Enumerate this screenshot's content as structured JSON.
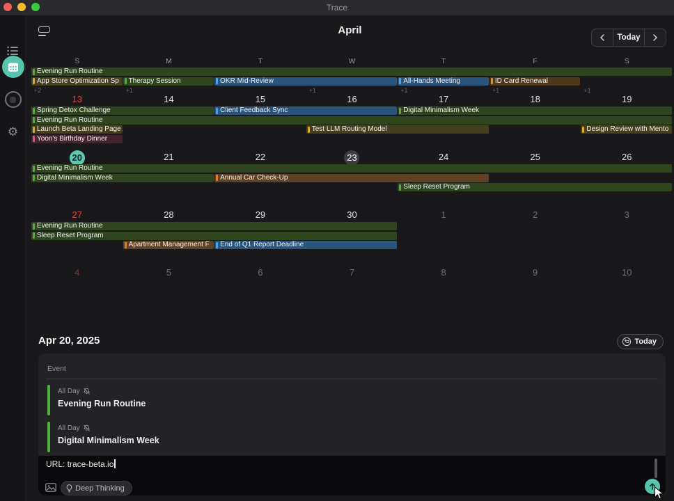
{
  "titlebar": {
    "title": "Trace"
  },
  "sidebar": {
    "icons": [
      "list-icon",
      "calendar-app-icon",
      "chat-circle-icon",
      "gear-icon"
    ],
    "accent": "#57c4ae"
  },
  "header": {
    "month": "April",
    "today_label": "Today"
  },
  "palette": {
    "green": {
      "marker": "#4fae3e",
      "bg": "#2e451e"
    },
    "yellow": {
      "marker": "#d8a72e",
      "bg": "#453f1d"
    },
    "blue": {
      "marker": "#56a1e6",
      "bg": "#29547c"
    },
    "brown": {
      "marker": "#dd8a2e",
      "bg": "#4e371b"
    },
    "orange": {
      "marker": "#e07e2e",
      "bg": "#5e4223"
    },
    "pink": {
      "marker": "#e05672",
      "bg": "#45222e"
    }
  },
  "calendar": {
    "weekday_headers": [
      "S",
      "M",
      "T",
      "W",
      "T",
      "F",
      "S"
    ],
    "weeks": [
      {
        "days": [],
        "events": [
          {
            "r": 1,
            "c": 1,
            "s": 7,
            "color": "green",
            "label": "Evening Run Routine"
          },
          {
            "r": 2,
            "c": 1,
            "s": 1,
            "color": "yellow",
            "label": "App Store Optimization Sp"
          },
          {
            "r": 2,
            "c": 2,
            "s": 1,
            "color": "green",
            "label": "Therapy Session"
          },
          {
            "r": 2,
            "c": 3,
            "s": 2,
            "color": "blue",
            "label": "OKR Mid-Review"
          },
          {
            "r": 2,
            "c": 5,
            "s": 1,
            "color": "blue",
            "label": "All-Hands Meeting"
          },
          {
            "r": 2,
            "c": 6,
            "s": 1,
            "color": "brown",
            "label": "ID Card Renewal"
          }
        ],
        "overflow": [
          "+2",
          "+1",
          "",
          "+1",
          "+1",
          "+1",
          "+1"
        ]
      },
      {
        "days": [
          {
            "n": "13",
            "t": "sunday"
          },
          {
            "n": "14"
          },
          {
            "n": "15"
          },
          {
            "n": "16"
          },
          {
            "n": "17"
          },
          {
            "n": "18"
          },
          {
            "n": "19"
          }
        ],
        "events": [
          {
            "r": 1,
            "c": 1,
            "s": 2,
            "color": "green",
            "label": "Spring Detox Challenge"
          },
          {
            "r": 1,
            "c": 3,
            "s": 2,
            "color": "blue",
            "label": "Client Feedback Sync"
          },
          {
            "r": 1,
            "c": 5,
            "s": 3,
            "color": "green",
            "label": "Digital Minimalism Week"
          },
          {
            "r": 2,
            "c": 1,
            "s": 7,
            "color": "green",
            "label": "Evening Run Routine"
          },
          {
            "r": 3,
            "c": 1,
            "s": 1,
            "color": "yellow",
            "label": "Launch Beta Landing Page"
          },
          {
            "r": 3,
            "c": 4,
            "s": 2,
            "color": "yellow",
            "label": "Test LLM Routing Model"
          },
          {
            "r": 3,
            "c": 7,
            "s": 1,
            "color": "yellow",
            "label": "Design Review with Mento"
          },
          {
            "r": 4,
            "c": 1,
            "s": 1,
            "color": "pink",
            "label": "Yoon's Birthday Dinner"
          }
        ]
      },
      {
        "days": [
          {
            "n": "20",
            "t": "sel"
          },
          {
            "n": "21"
          },
          {
            "n": "22"
          },
          {
            "n": "23",
            "t": "today"
          },
          {
            "n": "24"
          },
          {
            "n": "25"
          },
          {
            "n": "26"
          }
        ],
        "events": [
          {
            "r": 1,
            "c": 1,
            "s": 7,
            "color": "green",
            "label": "Evening Run Routine"
          },
          {
            "r": 2,
            "c": 1,
            "s": 2,
            "color": "green",
            "label": "Digital Minimalism Week"
          },
          {
            "r": 2,
            "c": 3,
            "s": 3,
            "color": "orange",
            "label": "Annual Car Check-Up"
          },
          {
            "r": 3,
            "c": 5,
            "s": 3,
            "color": "green",
            "label": "Sleep Reset Program"
          }
        ]
      },
      {
        "days": [
          {
            "n": "27",
            "t": "sunday"
          },
          {
            "n": "28"
          },
          {
            "n": "29"
          },
          {
            "n": "30"
          },
          {
            "n": "1",
            "t": "dim"
          },
          {
            "n": "2",
            "t": "dim"
          },
          {
            "n": "3",
            "t": "dim"
          }
        ],
        "events": [
          {
            "r": 1,
            "c": 1,
            "s": 4,
            "color": "green",
            "label": "Evening Run Routine"
          },
          {
            "r": 2,
            "c": 1,
            "s": 4,
            "color": "green",
            "label": "Sleep Reset Program"
          },
          {
            "r": 3,
            "c": 2,
            "s": 1,
            "color": "orange",
            "label": "Apartment Management F"
          },
          {
            "r": 3,
            "c": 3,
            "s": 2,
            "color": "blue",
            "label": "End of Q1 Report Deadline"
          }
        ]
      },
      {
        "days": [
          {
            "n": "4",
            "t": "dimsun"
          },
          {
            "n": "5",
            "t": "dim"
          },
          {
            "n": "6",
            "t": "dim"
          },
          {
            "n": "7",
            "t": "dim"
          },
          {
            "n": "8",
            "t": "dim"
          },
          {
            "n": "9",
            "t": "dim"
          },
          {
            "n": "10",
            "t": "dim"
          }
        ],
        "events": []
      }
    ]
  },
  "detail": {
    "date": "Apr 20, 2025",
    "today_label": "Today",
    "section_label": "Event",
    "events": [
      {
        "time": "All Day",
        "title": "Evening Run Routine"
      },
      {
        "time": "All Day",
        "title": "Digital Minimalism Week"
      }
    ]
  },
  "composer": {
    "input_text": "URL: trace-beta.io",
    "deep_thinking_label": "Deep Thinking"
  }
}
